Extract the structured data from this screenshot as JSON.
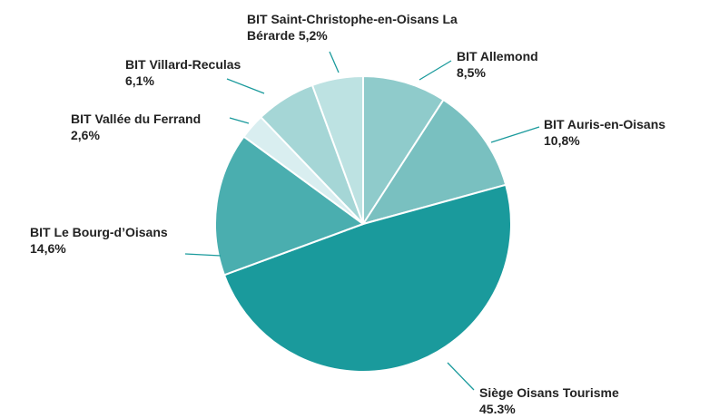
{
  "chart_data": {
    "type": "pie",
    "categories": [
      "BIT Allemond",
      "BIT Auris-en-Oisans",
      "Siège Oisans Tourisme",
      "BIT Le Bourg-d’Oisans",
      "BIT Vallée du Ferrand",
      "BIT Villard-Reculas",
      "BIT Saint-Christophe-en-Oisans La Bérarde"
    ],
    "values": [
      8.5,
      10.8,
      45.3,
      14.6,
      2.6,
      6.1,
      5.2
    ],
    "value_labels": [
      "8,5%",
      "10,8%",
      "45.3%",
      "14,6%",
      "2,6%",
      "6,1%",
      "5,2%"
    ],
    "colors": [
      "#8fcbcb",
      "#79c0c0",
      "#1a9a9c",
      "#4aaeaf",
      "#d9eef0",
      "#a5d6d6",
      "#bde2e2"
    ]
  }
}
